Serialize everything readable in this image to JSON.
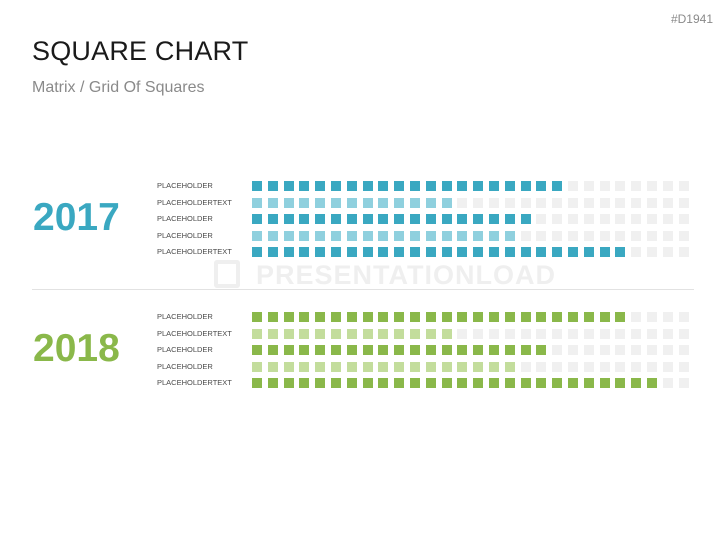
{
  "doc_id": "#D1941",
  "title": "SQUARE CHART",
  "subtitle": "Matrix / Grid Of Squares",
  "watermark": "PRESENTATIONLOAD",
  "colors": {
    "empty": "#f0f0f0",
    "year_2017": "#3aa8c1",
    "year_2017_light": "#8fd0de",
    "year_2018": "#8ab84a",
    "year_2018_light": "#c3dd9c"
  },
  "chart_data": {
    "type": "bar",
    "total_squares_per_row": 28,
    "groups": [
      {
        "year": "2017",
        "color": "#3aa8c1",
        "rows": [
          {
            "label": "PLACEHOLDER",
            "value": 20,
            "shade": "dark"
          },
          {
            "label": "PLACEHOLDERTEXT",
            "value": 13,
            "shade": "light"
          },
          {
            "label": "PLACEHOLDER",
            "value": 18,
            "shade": "dark"
          },
          {
            "label": "PLACEHOLDER",
            "value": 17,
            "shade": "light"
          },
          {
            "label": "PLACEHOLDERTEXT",
            "value": 24,
            "shade": "dark"
          }
        ]
      },
      {
        "year": "2018",
        "color": "#8ab84a",
        "rows": [
          {
            "label": "PLACEHOLDER",
            "value": 24,
            "shade": "dark"
          },
          {
            "label": "PLACEHOLDERTEXT",
            "value": 13,
            "shade": "light"
          },
          {
            "label": "PLACEHOLDER",
            "value": 19,
            "shade": "dark"
          },
          {
            "label": "PLACEHOLDER",
            "value": 17,
            "shade": "light"
          },
          {
            "label": "PLACEHOLDERTEXT",
            "value": 26,
            "shade": "dark"
          }
        ]
      }
    ]
  }
}
